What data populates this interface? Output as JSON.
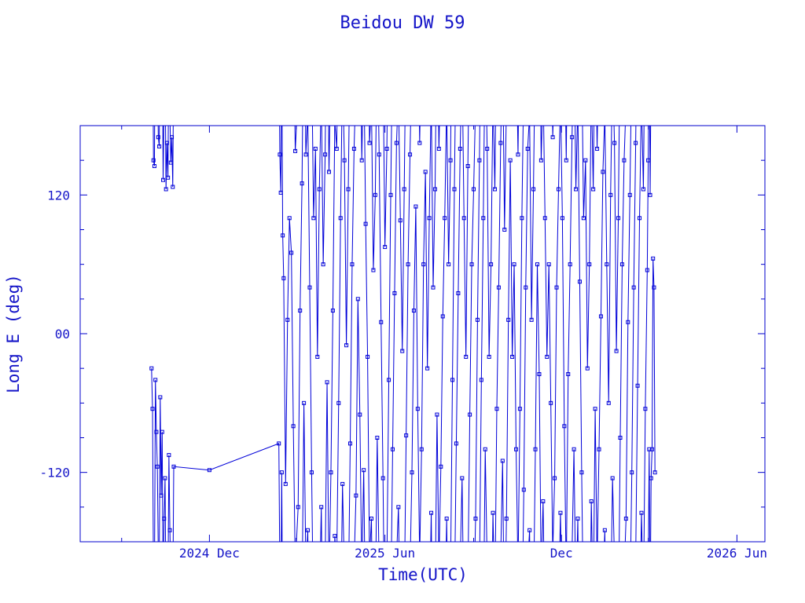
{
  "chart_data": {
    "type": "scatter",
    "title": "Beidou DW 59",
    "xlabel": "Time(UTC)",
    "ylabel": "Long E (deg)",
    "xlim": [
      "2024-07-20",
      "2026-06-30"
    ],
    "ylim": [
      -180,
      180
    ],
    "x_ticks": [
      {
        "label": "2024 Dec",
        "value": "2024-12-01"
      },
      {
        "label": "2025 Jun",
        "value": "2025-06-01"
      },
      {
        "label": "Dec",
        "value": "2025-12-01"
      },
      {
        "label": "2026 Jun",
        "value": "2026-06-01"
      }
    ],
    "y_ticks": [
      {
        "label": "120",
        "value": 120
      },
      {
        "label": "00",
        "value": 0
      },
      {
        "label": "-120",
        "value": -120
      }
    ],
    "y_minor_step": 30,
    "marker": "open-square",
    "line_color": "#0000d8",
    "text_color": "#1414c8",
    "series": [
      {
        "points": [
          [
            "2024-10-02",
            -30
          ],
          [
            "2024-10-03",
            -65
          ],
          [
            "2024-10-04",
            150
          ],
          [
            "2024-10-05",
            145
          ],
          [
            "2024-10-06",
            -40
          ],
          [
            "2024-10-07",
            -85
          ],
          [
            "2024-10-08",
            -115
          ],
          [
            "2024-10-09",
            170
          ],
          [
            "2024-10-10",
            162
          ],
          [
            "2024-10-11",
            -55
          ],
          [
            "2024-10-12",
            -140
          ],
          [
            "2024-10-13",
            -85
          ],
          [
            "2024-10-14",
            133
          ],
          [
            "2024-10-15",
            -160
          ],
          [
            "2024-10-16",
            -125
          ],
          [
            "2024-10-17",
            125
          ],
          [
            "2024-10-18",
            165
          ],
          [
            "2024-10-19",
            135
          ],
          [
            "2024-10-20",
            -105
          ],
          [
            "2024-10-21",
            -170
          ],
          [
            "2024-10-22",
            148
          ],
          [
            "2024-10-23",
            170
          ],
          [
            "2024-10-24",
            127
          ],
          [
            "2024-10-25",
            -115
          ],
          [
            "2024-12-01",
            -118
          ],
          [
            "2025-02-11",
            -95
          ],
          [
            "2025-02-12",
            155
          ],
          [
            "2025-02-13",
            122
          ],
          [
            "2025-02-14",
            -120
          ],
          [
            "2025-02-15",
            85
          ],
          [
            "2025-02-16",
            48
          ],
          [
            "2025-02-18",
            -130
          ],
          [
            "2025-02-20",
            12
          ],
          [
            "2025-02-22",
            100
          ],
          [
            "2025-02-24",
            70
          ],
          [
            "2025-02-26",
            -80
          ],
          [
            "2025-02-28",
            158
          ],
          [
            "2025-03-03",
            -150
          ],
          [
            "2025-03-05",
            20
          ],
          [
            "2025-03-07",
            130
          ],
          [
            "2025-03-09",
            -60
          ],
          [
            "2025-03-11",
            155
          ],
          [
            "2025-03-13",
            -170
          ],
          [
            "2025-03-15",
            40
          ],
          [
            "2025-03-17",
            -120
          ],
          [
            "2025-03-19",
            100
          ],
          [
            "2025-03-21",
            160
          ],
          [
            "2025-03-23",
            -20
          ],
          [
            "2025-03-25",
            125
          ],
          [
            "2025-03-27",
            -150
          ],
          [
            "2025-03-29",
            60
          ],
          [
            "2025-03-31",
            155
          ],
          [
            "2025-04-02",
            -42
          ],
          [
            "2025-04-04",
            140
          ],
          [
            "2025-04-06",
            -120
          ],
          [
            "2025-04-08",
            20
          ],
          [
            "2025-04-10",
            -175
          ],
          [
            "2025-04-12",
            160
          ],
          [
            "2025-04-14",
            -60
          ],
          [
            "2025-04-16",
            100
          ],
          [
            "2025-04-18",
            -130
          ],
          [
            "2025-04-20",
            150
          ],
          [
            "2025-04-22",
            -10
          ],
          [
            "2025-04-24",
            125
          ],
          [
            "2025-04-26",
            -95
          ],
          [
            "2025-04-28",
            60
          ],
          [
            "2025-04-30",
            160
          ],
          [
            "2025-05-02",
            -140
          ],
          [
            "2025-05-04",
            30
          ],
          [
            "2025-05-06",
            -70
          ],
          [
            "2025-05-08",
            150
          ],
          [
            "2025-05-10",
            -118
          ],
          [
            "2025-05-12",
            95
          ],
          [
            "2025-05-14",
            -20
          ],
          [
            "2025-05-16",
            165
          ],
          [
            "2025-05-18",
            -160
          ],
          [
            "2025-05-20",
            55
          ],
          [
            "2025-05-22",
            120
          ],
          [
            "2025-05-24",
            -90
          ],
          [
            "2025-05-26",
            155
          ],
          [
            "2025-05-28",
            10
          ],
          [
            "2025-05-30",
            -125
          ],
          [
            "2025-06-01",
            75
          ],
          [
            "2025-06-03",
            160
          ],
          [
            "2025-06-05",
            -40
          ],
          [
            "2025-06-07",
            120
          ],
          [
            "2025-06-09",
            -100
          ],
          [
            "2025-06-11",
            35
          ],
          [
            "2025-06-13",
            165
          ],
          [
            "2025-06-15",
            -150
          ],
          [
            "2025-06-17",
            98
          ],
          [
            "2025-06-19",
            -15
          ],
          [
            "2025-06-21",
            125
          ],
          [
            "2025-06-23",
            -88
          ],
          [
            "2025-06-25",
            60
          ],
          [
            "2025-06-27",
            155
          ],
          [
            "2025-06-29",
            -120
          ],
          [
            "2025-07-01",
            20
          ],
          [
            "2025-07-03",
            110
          ],
          [
            "2025-07-05",
            -65
          ],
          [
            "2025-07-07",
            165
          ],
          [
            "2025-07-09",
            -100
          ],
          [
            "2025-07-11",
            60
          ],
          [
            "2025-07-13",
            140
          ],
          [
            "2025-07-15",
            -30
          ],
          [
            "2025-07-17",
            100
          ],
          [
            "2025-07-19",
            -155
          ],
          [
            "2025-07-21",
            40
          ],
          [
            "2025-07-23",
            125
          ],
          [
            "2025-07-25",
            -70
          ],
          [
            "2025-07-27",
            160
          ],
          [
            "2025-07-29",
            -115
          ],
          [
            "2025-07-31",
            15
          ],
          [
            "2025-08-02",
            100
          ],
          [
            "2025-08-04",
            -160
          ],
          [
            "2025-08-06",
            60
          ],
          [
            "2025-08-08",
            150
          ],
          [
            "2025-08-10",
            -40
          ],
          [
            "2025-08-12",
            125
          ],
          [
            "2025-08-14",
            -95
          ],
          [
            "2025-08-16",
            35
          ],
          [
            "2025-08-18",
            160
          ],
          [
            "2025-08-20",
            -125
          ],
          [
            "2025-08-22",
            100
          ],
          [
            "2025-08-24",
            -20
          ],
          [
            "2025-08-26",
            145
          ],
          [
            "2025-08-28",
            -70
          ],
          [
            "2025-08-30",
            60
          ],
          [
            "2025-09-01",
            125
          ],
          [
            "2025-09-03",
            -160
          ],
          [
            "2025-09-05",
            12
          ],
          [
            "2025-09-07",
            150
          ],
          [
            "2025-09-09",
            -40
          ],
          [
            "2025-09-11",
            100
          ],
          [
            "2025-09-13",
            -100
          ],
          [
            "2025-09-15",
            160
          ],
          [
            "2025-09-17",
            -20
          ],
          [
            "2025-09-19",
            60
          ],
          [
            "2025-09-21",
            -155
          ],
          [
            "2025-09-23",
            125
          ],
          [
            "2025-09-25",
            -65
          ],
          [
            "2025-09-27",
            40
          ],
          [
            "2025-09-29",
            165
          ],
          [
            "2025-10-01",
            -110
          ],
          [
            "2025-10-03",
            90
          ],
          [
            "2025-10-05",
            -160
          ],
          [
            "2025-10-07",
            12
          ],
          [
            "2025-10-09",
            150
          ],
          [
            "2025-10-11",
            -20
          ],
          [
            "2025-10-13",
            60
          ],
          [
            "2025-10-15",
            -100
          ],
          [
            "2025-10-17",
            155
          ],
          [
            "2025-10-19",
            -65
          ],
          [
            "2025-10-21",
            100
          ],
          [
            "2025-10-23",
            -135
          ],
          [
            "2025-10-25",
            40
          ],
          [
            "2025-10-27",
            160
          ],
          [
            "2025-10-29",
            -170
          ],
          [
            "2025-10-31",
            12
          ],
          [
            "2025-11-02",
            125
          ],
          [
            "2025-11-04",
            -100
          ],
          [
            "2025-11-06",
            60
          ],
          [
            "2025-11-08",
            -35
          ],
          [
            "2025-11-10",
            150
          ],
          [
            "2025-11-12",
            -145
          ],
          [
            "2025-11-14",
            100
          ],
          [
            "2025-11-16",
            -20
          ],
          [
            "2025-11-18",
            60
          ],
          [
            "2025-11-20",
            -60
          ],
          [
            "2025-11-22",
            170
          ],
          [
            "2025-11-24",
            -125
          ],
          [
            "2025-11-26",
            40
          ],
          [
            "2025-11-28",
            125
          ],
          [
            "2025-11-30",
            -155
          ],
          [
            "2025-12-02",
            100
          ],
          [
            "2025-12-04",
            -80
          ],
          [
            "2025-12-06",
            150
          ],
          [
            "2025-12-08",
            -35
          ],
          [
            "2025-12-10",
            60
          ],
          [
            "2025-12-12",
            170
          ],
          [
            "2025-12-14",
            -100
          ],
          [
            "2025-12-16",
            125
          ],
          [
            "2025-12-18",
            -160
          ],
          [
            "2025-12-20",
            45
          ],
          [
            "2025-12-22",
            -120
          ],
          [
            "2025-12-24",
            100
          ],
          [
            "2025-12-26",
            150
          ],
          [
            "2025-12-28",
            -30
          ],
          [
            "2025-12-30",
            60
          ],
          [
            "2026-01-01",
            -145
          ],
          [
            "2026-01-03",
            125
          ],
          [
            "2026-01-05",
            -65
          ],
          [
            "2026-01-07",
            160
          ],
          [
            "2026-01-09",
            -100
          ],
          [
            "2026-01-11",
            15
          ],
          [
            "2026-01-13",
            140
          ],
          [
            "2026-01-15",
            -170
          ],
          [
            "2026-01-17",
            60
          ],
          [
            "2026-01-19",
            -60
          ],
          [
            "2026-01-21",
            120
          ],
          [
            "2026-01-23",
            -125
          ],
          [
            "2026-01-25",
            165
          ],
          [
            "2026-01-27",
            -15
          ],
          [
            "2026-01-29",
            100
          ],
          [
            "2026-01-31",
            -90
          ],
          [
            "2026-02-02",
            60
          ],
          [
            "2026-02-04",
            150
          ],
          [
            "2026-02-06",
            -160
          ],
          [
            "2026-02-08",
            10
          ],
          [
            "2026-02-10",
            120
          ],
          [
            "2026-02-12",
            -120
          ],
          [
            "2026-02-14",
            40
          ],
          [
            "2026-02-16",
            165
          ],
          [
            "2026-02-18",
            -45
          ],
          [
            "2026-02-20",
            100
          ],
          [
            "2026-02-22",
            -155
          ],
          [
            "2026-02-24",
            125
          ],
          [
            "2026-02-26",
            -65
          ],
          [
            "2026-02-28",
            55
          ],
          [
            "2026-03-01",
            150
          ],
          [
            "2026-03-02",
            -100
          ],
          [
            "2026-03-03",
            120
          ],
          [
            "2026-03-04",
            -125
          ],
          [
            "2026-03-05",
            -100
          ],
          [
            "2026-03-06",
            65
          ],
          [
            "2026-03-07",
            40
          ],
          [
            "2026-03-08",
            -120
          ]
        ]
      }
    ]
  }
}
